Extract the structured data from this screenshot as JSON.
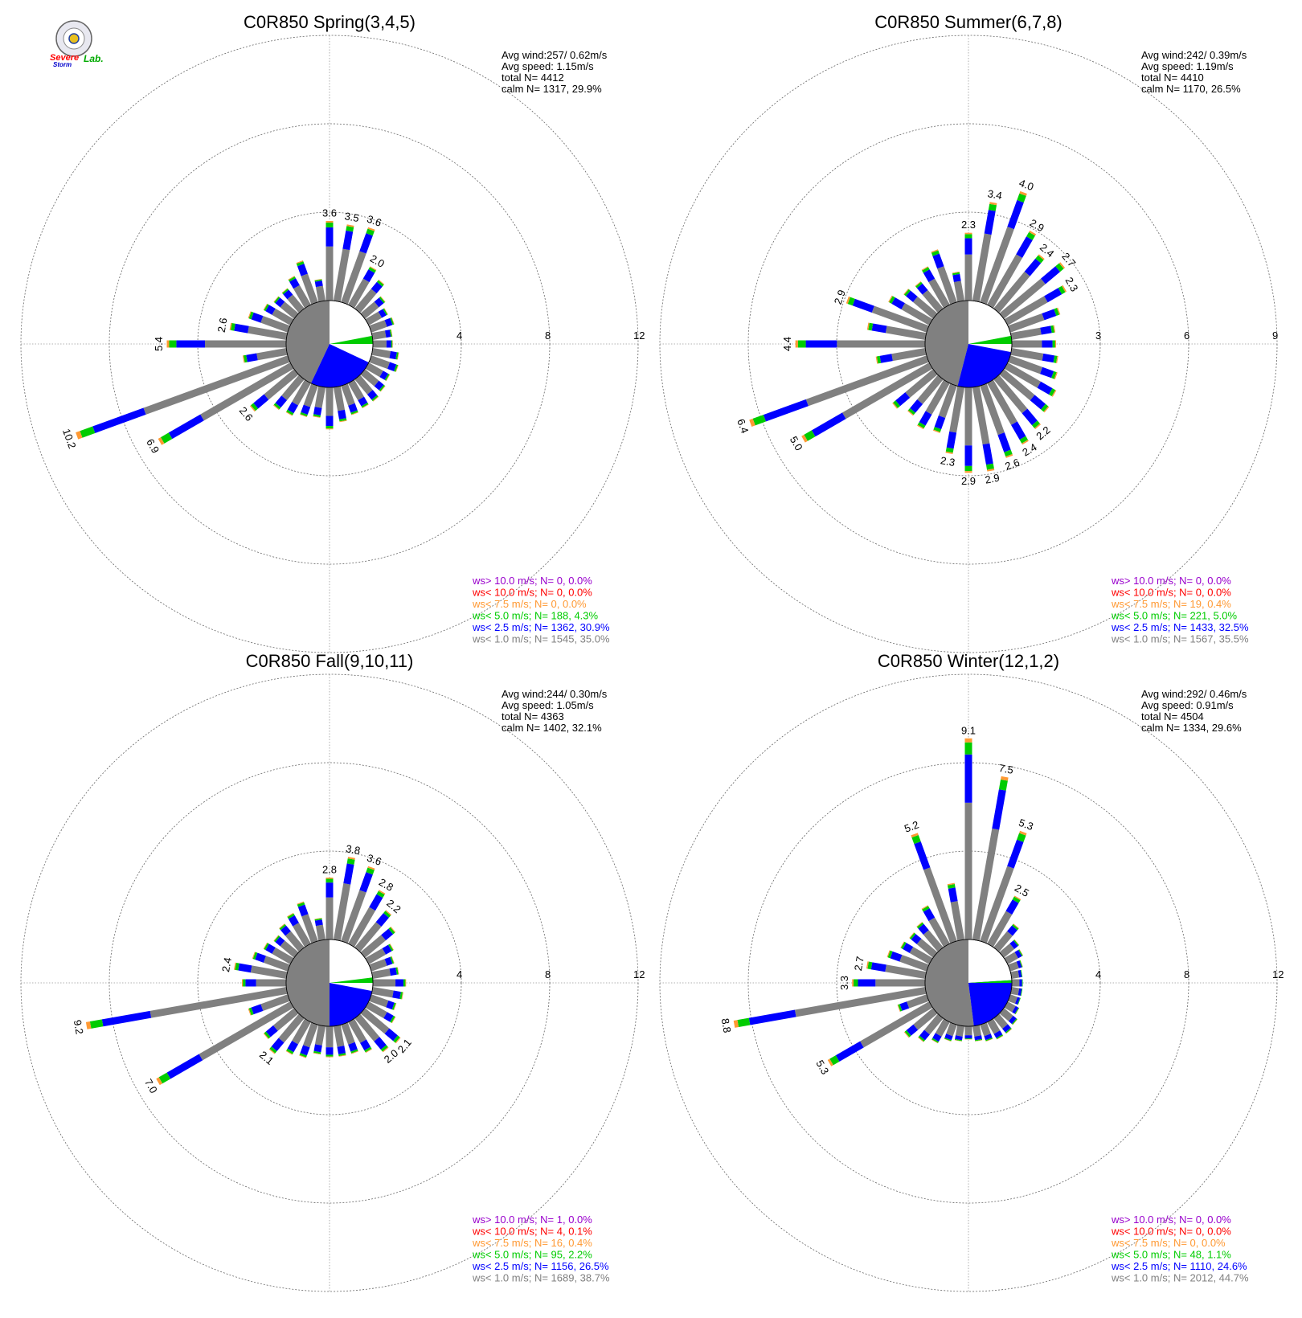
{
  "colors": {
    "gray": "#808080",
    "blue": "#0000ff",
    "green": "#00cc00",
    "orange": "#ff9933",
    "red": "#ff0000",
    "purple": "#9900cc"
  },
  "logo": {
    "line1": "Severe",
    "line2": "Storm",
    "line3": "Lab."
  },
  "chart_data": [
    {
      "type": "wind-rose",
      "title": "C0R850 Spring(3,4,5)",
      "stats": [
        "Avg wind:257/ 0.62m/s",
        "Avg speed: 1.15m/s",
        "total N=       4412",
        "calm N=  1317,  29.9%"
      ],
      "rings": [
        4,
        8,
        12
      ],
      "ring_labels": [
        "4",
        "8",
        "12"
      ],
      "calm": {
        "gray_fraction": 0.43,
        "blue_fraction": 0.25,
        "green_fraction": 0.03
      },
      "bars": [
        {
          "deg": 0,
          "total": 3.6,
          "label": "3.6"
        },
        {
          "deg": 10,
          "total": 3.5,
          "label": "3.5"
        },
        {
          "deg": 20,
          "total": 3.6,
          "label": "3.6"
        },
        {
          "deg": 30,
          "total": 2.0,
          "label": "2.0"
        },
        {
          "deg": 40,
          "total": 1.7
        },
        {
          "deg": 50,
          "total": 1.2
        },
        {
          "deg": 60,
          "total": 1.0
        },
        {
          "deg": 70,
          "total": 1.1
        },
        {
          "deg": 80,
          "total": 0.9
        },
        {
          "deg": 90,
          "total": 0.9
        },
        {
          "deg": 100,
          "total": 1.2
        },
        {
          "deg": 110,
          "total": 1.3
        },
        {
          "deg": 120,
          "total": 1.1
        },
        {
          "deg": 130,
          "total": 1.2
        },
        {
          "deg": 140,
          "total": 1.3
        },
        {
          "deg": 150,
          "total": 1.3
        },
        {
          "deg": 160,
          "total": 1.4
        },
        {
          "deg": 170,
          "total": 1.6
        },
        {
          "deg": 180,
          "total": 1.9
        },
        {
          "deg": 190,
          "total": 1.4
        },
        {
          "deg": 200,
          "total": 1.5
        },
        {
          "deg": 210,
          "total": 1.7
        },
        {
          "deg": 220,
          "total": 1.8
        },
        {
          "deg": 230,
          "total": 2.6,
          "label": "2.6"
        },
        {
          "deg": 240,
          "total": 6.9,
          "label": "6.9"
        },
        {
          "deg": 250,
          "total": 10.2,
          "label": "10.2"
        },
        {
          "deg": 260,
          "total": 2.0
        },
        {
          "deg": 270,
          "total": 5.4,
          "label": "5.4"
        },
        {
          "deg": 280,
          "total": 2.6,
          "label": "2.6"
        },
        {
          "deg": 290,
          "total": 1.9
        },
        {
          "deg": 300,
          "total": 1.4
        },
        {
          "deg": 310,
          "total": 1.2
        },
        {
          "deg": 320,
          "total": 1.2
        },
        {
          "deg": 330,
          "total": 1.5
        },
        {
          "deg": 340,
          "total": 2.0
        },
        {
          "deg": 350,
          "total": 1.0
        }
      ],
      "legend": [
        "ws> 10.0 m/s; N=     0,  0.0%",
        "ws< 10.0 m/s; N=     0,  0.0%",
        "ws<  7.5 m/s; N=     0,  0.0%",
        "ws<  5.0 m/s; N=   188,  4.3%",
        "ws<  2.5 m/s; N=  1362, 30.9%",
        "ws<  1.0 m/s; N=  1545, 35.0%"
      ]
    },
    {
      "type": "wind-rose",
      "title": "C0R850 Summer(6,7,8)",
      "stats": [
        "Avg wind:242/ 0.39m/s",
        "Avg speed: 1.19m/s",
        "total N=       4410",
        "calm N=  1170,  26.5%"
      ],
      "rings": [
        3,
        6,
        9
      ],
      "ring_labels": [
        "3",
        "6",
        "9"
      ],
      "calm": {
        "gray_fraction": 0.46,
        "blue_fraction": 0.26,
        "green_fraction": 0.03
      },
      "bars": [
        {
          "deg": 0,
          "total": 2.3,
          "label": "2.3"
        },
        {
          "deg": 10,
          "total": 3.4,
          "label": "3.4"
        },
        {
          "deg": 20,
          "total": 4.0,
          "label": "4.0"
        },
        {
          "deg": 30,
          "total": 2.9,
          "label": "2.9"
        },
        {
          "deg": 40,
          "total": 2.4,
          "label": "2.4"
        },
        {
          "deg": 50,
          "total": 2.7,
          "label": "2.7"
        },
        {
          "deg": 60,
          "total": 2.3,
          "label": "2.3"
        },
        {
          "deg": 70,
          "total": 1.8
        },
        {
          "deg": 80,
          "total": 1.5
        },
        {
          "deg": 90,
          "total": 1.5
        },
        {
          "deg": 100,
          "total": 1.6
        },
        {
          "deg": 110,
          "total": 1.7
        },
        {
          "deg": 120,
          "total": 1.9
        },
        {
          "deg": 130,
          "total": 2.0
        },
        {
          "deg": 140,
          "total": 2.2,
          "label": "2.2"
        },
        {
          "deg": 150,
          "total": 2.4,
          "label": "2.4"
        },
        {
          "deg": 160,
          "total": 2.6,
          "label": "2.6"
        },
        {
          "deg": 170,
          "total": 2.9,
          "label": "2.9"
        },
        {
          "deg": 180,
          "total": 2.9,
          "label": "2.9"
        },
        {
          "deg": 190,
          "total": 2.3,
          "label": "2.3"
        },
        {
          "deg": 200,
          "total": 1.7
        },
        {
          "deg": 210,
          "total": 1.8
        },
        {
          "deg": 220,
          "total": 1.6
        },
        {
          "deg": 230,
          "total": 1.8
        },
        {
          "deg": 240,
          "total": 5.0,
          "label": "5.0"
        },
        {
          "deg": 250,
          "total": 6.4,
          "label": "6.4"
        },
        {
          "deg": 260,
          "total": 1.7
        },
        {
          "deg": 270,
          "total": 4.4,
          "label": "4.4"
        },
        {
          "deg": 280,
          "total": 2.0
        },
        {
          "deg": 290,
          "total": 2.9,
          "label": "2.9"
        },
        {
          "deg": 300,
          "total": 1.6
        },
        {
          "deg": 310,
          "total": 1.3
        },
        {
          "deg": 320,
          "total": 1.2
        },
        {
          "deg": 330,
          "total": 1.5
        },
        {
          "deg": 340,
          "total": 1.9
        },
        {
          "deg": 350,
          "total": 1.0
        }
      ],
      "legend": [
        "ws> 10.0 m/s; N=     0,  0.0%",
        "ws< 10.0 m/s; N=     0,  0.0%",
        "ws<  7.5 m/s; N=    19,  0.4%",
        "ws<  5.0 m/s; N=   221,  5.0%",
        "ws<  2.5 m/s; N=  1433, 32.5%",
        "ws<  1.0 m/s; N=  1567, 35.5%"
      ]
    },
    {
      "type": "wind-rose",
      "title": "C0R850 Fall(9,10,11)",
      "stats": [
        "Avg wind:244/ 0.30m/s",
        "Avg speed: 1.05m/s",
        "total N=       4363",
        "calm N=  1402,  32.1%"
      ],
      "rings": [
        4,
        8,
        12
      ],
      "ring_labels": [
        "4",
        "8",
        "12"
      ],
      "calm": {
        "gray_fraction": 0.5,
        "blue_fraction": 0.22,
        "green_fraction": 0.02
      },
      "bars": [
        {
          "deg": 0,
          "total": 2.8,
          "label": "2.8"
        },
        {
          "deg": 10,
          "total": 3.8,
          "label": "3.8"
        },
        {
          "deg": 20,
          "total": 3.6,
          "label": "3.6"
        },
        {
          "deg": 30,
          "total": 2.8,
          "label": "2.8"
        },
        {
          "deg": 40,
          "total": 2.2,
          "label": "2.2"
        },
        {
          "deg": 50,
          "total": 1.8
        },
        {
          "deg": 60,
          "total": 1.3
        },
        {
          "deg": 70,
          "total": 1.1
        },
        {
          "deg": 80,
          "total": 1.2
        },
        {
          "deg": 90,
          "total": 1.5
        },
        {
          "deg": 100,
          "total": 1.4
        },
        {
          "deg": 110,
          "total": 1.2
        },
        {
          "deg": 120,
          "total": 1.4
        },
        {
          "deg": 130,
          "total": 2.1,
          "label": "2.1"
        },
        {
          "deg": 140,
          "total": 2.0,
          "label": "2.0"
        },
        {
          "deg": 150,
          "total": 1.6
        },
        {
          "deg": 160,
          "total": 1.4
        },
        {
          "deg": 170,
          "total": 1.4
        },
        {
          "deg": 180,
          "total": 1.4
        },
        {
          "deg": 190,
          "total": 1.3
        },
        {
          "deg": 200,
          "total": 1.6
        },
        {
          "deg": 210,
          "total": 1.7
        },
        {
          "deg": 220,
          "total": 2.1,
          "label": "2.1"
        },
        {
          "deg": 230,
          "total": 1.8
        },
        {
          "deg": 240,
          "total": 7.0,
          "label": "7.0"
        },
        {
          "deg": 250,
          "total": 1.9
        },
        {
          "deg": 260,
          "total": 9.2,
          "label": "9.2"
        },
        {
          "deg": 270,
          "total": 2.0
        },
        {
          "deg": 280,
          "total": 2.4,
          "label": "2.4"
        },
        {
          "deg": 290,
          "total": 1.7
        },
        {
          "deg": 300,
          "total": 1.4
        },
        {
          "deg": 310,
          "total": 1.2
        },
        {
          "deg": 320,
          "total": 1.4
        },
        {
          "deg": 330,
          "total": 1.6
        },
        {
          "deg": 340,
          "total": 1.9
        },
        {
          "deg": 350,
          "total": 1.0
        }
      ],
      "legend": [
        "ws> 10.0 m/s; N=     1,  0.0%",
        "ws< 10.0 m/s; N=     4,  0.1%",
        "ws<  7.5 m/s; N=    16,  0.4%",
        "ws<  5.0 m/s; N=    95,  2.2%",
        "ws<  2.5 m/s; N=  1156, 26.5%",
        "ws<  1.0 m/s; N=  1689, 38.7%"
      ]
    },
    {
      "type": "wind-rose",
      "title": "C0R850 Winter(12,1,2)",
      "stats": [
        "Avg wind:292/ 0.46m/s",
        "Avg speed: 0.91m/s",
        "total N=       4504",
        "calm N=  1334,  29.6%"
      ],
      "rings": [
        4,
        8,
        12
      ],
      "ring_labels": [
        "4",
        "8",
        "12"
      ],
      "calm": {
        "gray_fraction": 0.52,
        "blue_fraction": 0.24,
        "green_fraction": 0.01
      },
      "bars": [
        {
          "deg": 0,
          "total": 9.1,
          "label": "9.1"
        },
        {
          "deg": 10,
          "total": 7.5,
          "label": "7.5"
        },
        {
          "deg": 20,
          "total": 5.3,
          "label": "5.3"
        },
        {
          "deg": 30,
          "total": 2.5,
          "label": "2.5"
        },
        {
          "deg": 40,
          "total": 1.4
        },
        {
          "deg": 50,
          "total": 0.9
        },
        {
          "deg": 60,
          "total": 0.8
        },
        {
          "deg": 70,
          "total": 0.6
        },
        {
          "deg": 80,
          "total": 0.5
        },
        {
          "deg": 90,
          "total": 0.5
        },
        {
          "deg": 100,
          "total": 0.5
        },
        {
          "deg": 110,
          "total": 0.5
        },
        {
          "deg": 120,
          "total": 0.6
        },
        {
          "deg": 130,
          "total": 0.8
        },
        {
          "deg": 140,
          "total": 0.9
        },
        {
          "deg": 150,
          "total": 0.9
        },
        {
          "deg": 160,
          "total": 0.8
        },
        {
          "deg": 170,
          "total": 0.7
        },
        {
          "deg": 180,
          "total": 0.6
        },
        {
          "deg": 190,
          "total": 0.7
        },
        {
          "deg": 200,
          "total": 0.8
        },
        {
          "deg": 210,
          "total": 1.1
        },
        {
          "deg": 220,
          "total": 1.4
        },
        {
          "deg": 230,
          "total": 1.7
        },
        {
          "deg": 240,
          "total": 5.3,
          "label": "5.3"
        },
        {
          "deg": 250,
          "total": 1.4
        },
        {
          "deg": 260,
          "total": 8.8,
          "label": "8.8"
        },
        {
          "deg": 270,
          "total": 3.3,
          "label": "3.3"
        },
        {
          "deg": 280,
          "total": 2.7,
          "label": "2.7"
        },
        {
          "deg": 290,
          "total": 1.9
        },
        {
          "deg": 300,
          "total": 1.5
        },
        {
          "deg": 310,
          "total": 1.4
        },
        {
          "deg": 320,
          "total": 1.5
        },
        {
          "deg": 330,
          "total": 2.0
        },
        {
          "deg": 340,
          "total": 5.2,
          "label": "5.2"
        },
        {
          "deg": 350,
          "total": 2.6
        }
      ],
      "legend": [
        "ws> 10.0 m/s; N=     0,  0.0%",
        "ws< 10.0 m/s; N=     0,  0.0%",
        "ws<  7.5 m/s; N=     0,  0.0%",
        "ws<  5.0 m/s; N=    48,  1.1%",
        "ws<  2.5 m/s; N=  1110, 24.6%",
        "ws<  1.0 m/s; N=  2012, 44.7%"
      ]
    }
  ]
}
